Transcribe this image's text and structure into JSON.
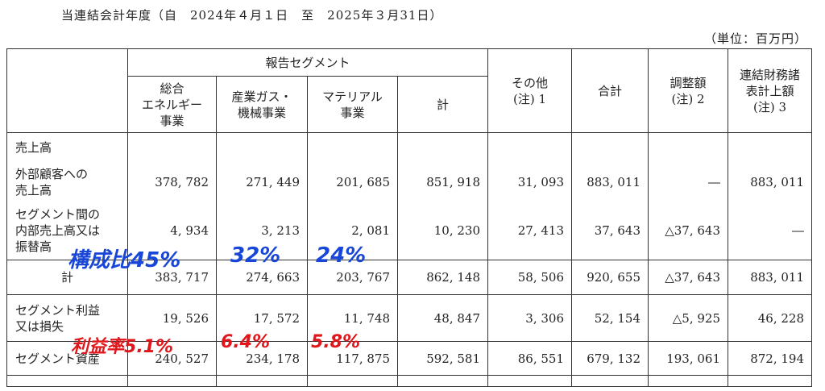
{
  "period": "当連結会計年度（自　2024年４月１日　至　2025年３月31日）",
  "unit": "（単位：百万円）",
  "headers": {
    "reported_segments": "報告セグメント",
    "energy": [
      "総合",
      "エネルギー",
      "事業"
    ],
    "gas": [
      "産業ガス・",
      "機械事業"
    ],
    "material": [
      "マテリアル",
      "事業"
    ],
    "subtotal": "計",
    "other": [
      "その他",
      "(注) 1"
    ],
    "total": "合計",
    "adjustment": [
      "調整額",
      "(注) 2"
    ],
    "consolidated": [
      "連結財務諸",
      "表計上額",
      "(注) 3"
    ]
  },
  "rows": {
    "sales_heading": "売上高",
    "external": {
      "label": [
        "外部顧客への",
        "売上高"
      ],
      "values": [
        "378, 782",
        "271, 449",
        "201, 685",
        "851, 918",
        "31, 093",
        "883, 011",
        "―",
        "883, 011"
      ]
    },
    "intersegment": {
      "label": [
        "セグメント間の",
        "内部売上高又は",
        "振替高"
      ],
      "values": [
        "4, 934",
        "3, 213",
        "2, 081",
        "10, 230",
        "27, 413",
        "37, 643",
        "△37, 643",
        "―"
      ]
    },
    "sales_total": {
      "label": "計",
      "values": [
        "383, 717",
        "274, 663",
        "203, 767",
        "862, 148",
        "58, 506",
        "920, 655",
        "△37, 643",
        "883, 011"
      ]
    },
    "profit": {
      "label": [
        "セグメント利益",
        "又は損失"
      ],
      "values": [
        "19, 526",
        "17, 572",
        "11, 748",
        "48, 847",
        "3, 306",
        "52, 154",
        "△5, 925",
        "46, 228"
      ]
    },
    "assets": {
      "label": "セグメント資産",
      "values": [
        "240, 527",
        "234, 178",
        "117, 875",
        "592, 581",
        "86, 551",
        "679, 132",
        "193, 061",
        "872, 194"
      ]
    }
  },
  "annotations": {
    "share_label": "構成比",
    "share_energy": "45%",
    "share_gas": "32%",
    "share_material": "24%",
    "margin_label": "利益率",
    "margin_energy": "5.1%",
    "margin_gas": "6.4%",
    "margin_material": "5.8%",
    "blue": "#1846d8",
    "red": "#e0161b"
  }
}
